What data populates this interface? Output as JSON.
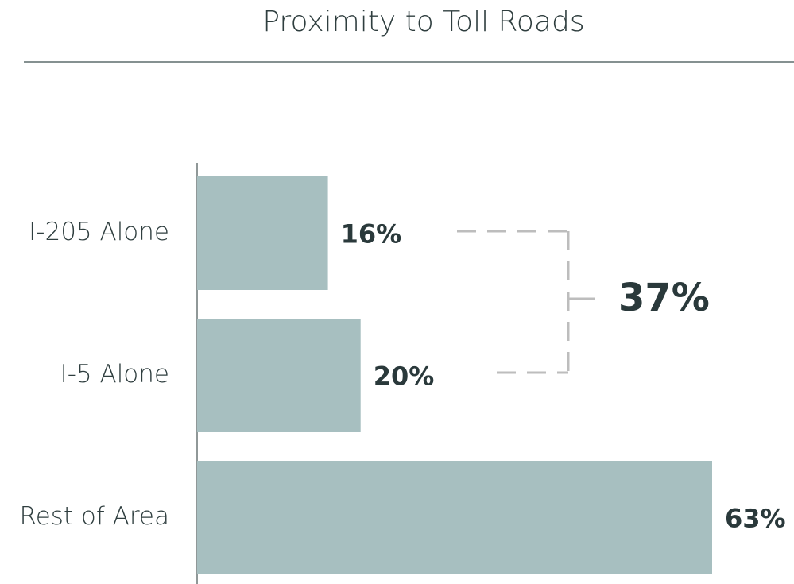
{
  "chart_data": {
    "type": "hbar",
    "title": "Proximity to Toll Roads",
    "categories": [
      "I-205 Alone",
      "I-5 Alone",
      "Rest of Area"
    ],
    "values": [
      16,
      20,
      63
    ],
    "value_labels": [
      "16%",
      "20%",
      "63%"
    ],
    "color": "#a7bfc0",
    "xlim": [
      0,
      63
    ],
    "annotation": "37%"
  }
}
